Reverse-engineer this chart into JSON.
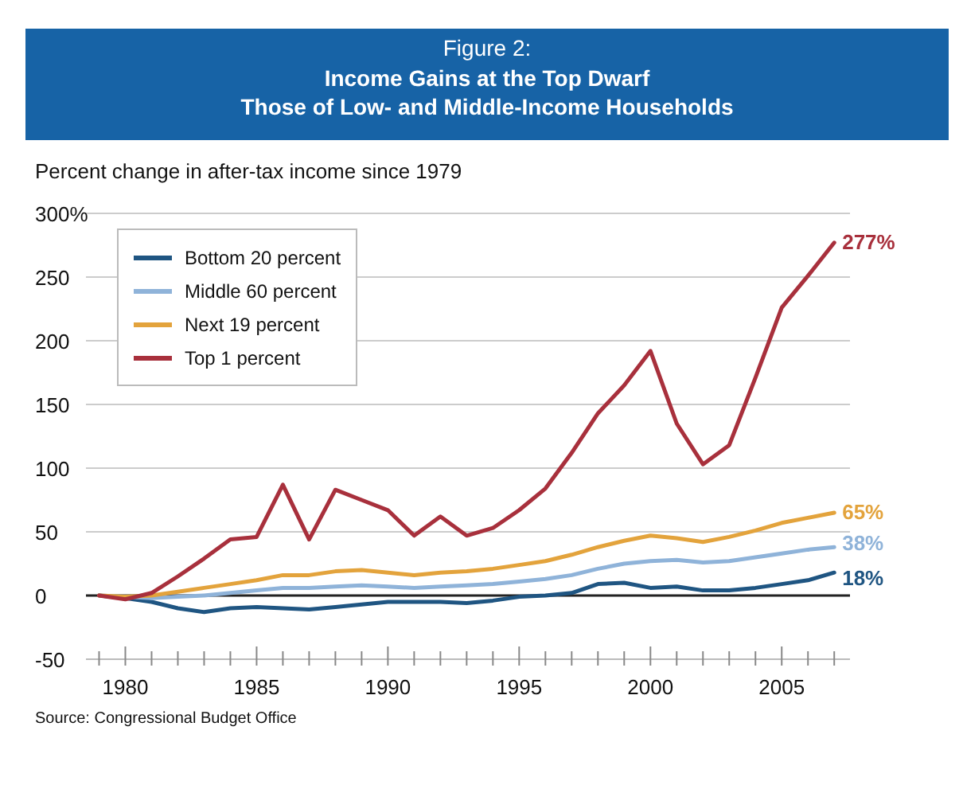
{
  "chart_data": {
    "type": "line",
    "subtitle": "Figure 2:",
    "title": "Income Gains at the Top Dwarf\nThose of Low- and Middle-Income Households",
    "ylabel": "Percent change in after-tax income since 1979",
    "x": [
      1979,
      1980,
      1981,
      1982,
      1983,
      1984,
      1985,
      1986,
      1987,
      1988,
      1989,
      1990,
      1991,
      1992,
      1993,
      1994,
      1995,
      1996,
      1997,
      1998,
      1999,
      2000,
      2001,
      2002,
      2003,
      2004,
      2005,
      2006,
      2007
    ],
    "series": [
      {
        "name": "Bottom 20 percent",
        "color": "#1f5582",
        "values": [
          0,
          -2,
          -5,
          -10,
          -13,
          -10,
          -9,
          -10,
          -11,
          -9,
          -7,
          -5,
          -5,
          -5,
          -6,
          -4,
          -1,
          0,
          2,
          9,
          10,
          6,
          7,
          4,
          4,
          6,
          9,
          12,
          18
        ],
        "value_labels": [
          null,
          null,
          null,
          null,
          null,
          null,
          null,
          null,
          null,
          null,
          null,
          null,
          null,
          null,
          null,
          null,
          null,
          null,
          null,
          null,
          null,
          null,
          null,
          null,
          null,
          null,
          null,
          null,
          "18%"
        ]
      },
      {
        "name": "Middle 60 percent",
        "color": "#8fb3d9",
        "values": [
          0,
          -1,
          -2,
          -1,
          0,
          2,
          4,
          6,
          6,
          7,
          8,
          7,
          6,
          7,
          8,
          9,
          11,
          13,
          16,
          21,
          25,
          27,
          28,
          26,
          27,
          30,
          33,
          36,
          38
        ],
        "value_labels": [
          null,
          null,
          null,
          null,
          null,
          null,
          null,
          null,
          null,
          null,
          null,
          null,
          null,
          null,
          null,
          null,
          null,
          null,
          null,
          null,
          null,
          null,
          null,
          null,
          null,
          null,
          null,
          null,
          "38%"
        ]
      },
      {
        "name": "Next 19 percent",
        "color": "#e3a33c",
        "values": [
          0,
          -1,
          0,
          3,
          6,
          9,
          12,
          16,
          16,
          19,
          20,
          18,
          16,
          18,
          19,
          21,
          24,
          27,
          32,
          38,
          43,
          47,
          45,
          42,
          46,
          51,
          57,
          61,
          65
        ],
        "value_labels": [
          null,
          null,
          null,
          null,
          null,
          null,
          null,
          null,
          null,
          null,
          null,
          null,
          null,
          null,
          null,
          null,
          null,
          null,
          null,
          null,
          null,
          null,
          null,
          null,
          null,
          null,
          null,
          null,
          "65%"
        ]
      },
      {
        "name": "Top 1 percent",
        "color": "#a8303c",
        "values": [
          0,
          -3,
          2,
          15,
          29,
          44,
          46,
          87,
          44,
          83,
          75,
          67,
          47,
          62,
          47,
          53,
          67,
          84,
          112,
          143,
          165,
          192,
          135,
          103,
          118,
          171,
          226,
          251,
          277
        ],
        "value_labels": [
          null,
          null,
          null,
          null,
          null,
          null,
          null,
          null,
          null,
          null,
          null,
          null,
          null,
          null,
          null,
          null,
          null,
          null,
          null,
          null,
          null,
          null,
          null,
          null,
          null,
          null,
          null,
          null,
          "277%"
        ]
      }
    ],
    "xlim": [
      1978.5,
      2007.6
    ],
    "xticks": [
      {
        "value": 1979,
        "label": null
      },
      1980,
      {
        "value": 1981,
        "label": null
      },
      {
        "value": 1982,
        "label": null
      },
      {
        "value": 1983,
        "label": null
      },
      {
        "value": 1984,
        "label": null
      },
      1985,
      {
        "value": 1986,
        "label": null
      },
      {
        "value": 1987,
        "label": null
      },
      {
        "value": 1988,
        "label": null
      },
      {
        "value": 1989,
        "label": null
      },
      1990,
      {
        "value": 1991,
        "label": null
      },
      {
        "value": 1992,
        "label": null
      },
      {
        "value": 1993,
        "label": null
      },
      {
        "value": 1994,
        "label": null
      },
      1995,
      {
        "value": 1996,
        "label": null
      },
      {
        "value": 1997,
        "label": null
      },
      {
        "value": 1998,
        "label": null
      },
      {
        "value": 1999,
        "label": null
      },
      2000,
      {
        "value": 2001,
        "label": null
      },
      {
        "value": 2002,
        "label": null
      },
      {
        "value": 2003,
        "label": null
      },
      {
        "value": 2004,
        "label": null
      },
      2005,
      {
        "value": 2006,
        "label": null
      },
      {
        "value": 2007,
        "label": null
      }
    ],
    "ylim": [
      -50,
      300
    ],
    "yticks": [
      -50,
      0,
      50,
      100,
      150,
      200,
      250,
      {
        "value": 300,
        "label": "300%"
      }
    ],
    "grid": "y",
    "legend": "top left",
    "line_style": "solid",
    "ref_lines": [
      {
        "axis": "y",
        "value": 0,
        "color": "#222222"
      }
    ],
    "annotations": [
      "Source: Congressional Budget Office"
    ]
  }
}
